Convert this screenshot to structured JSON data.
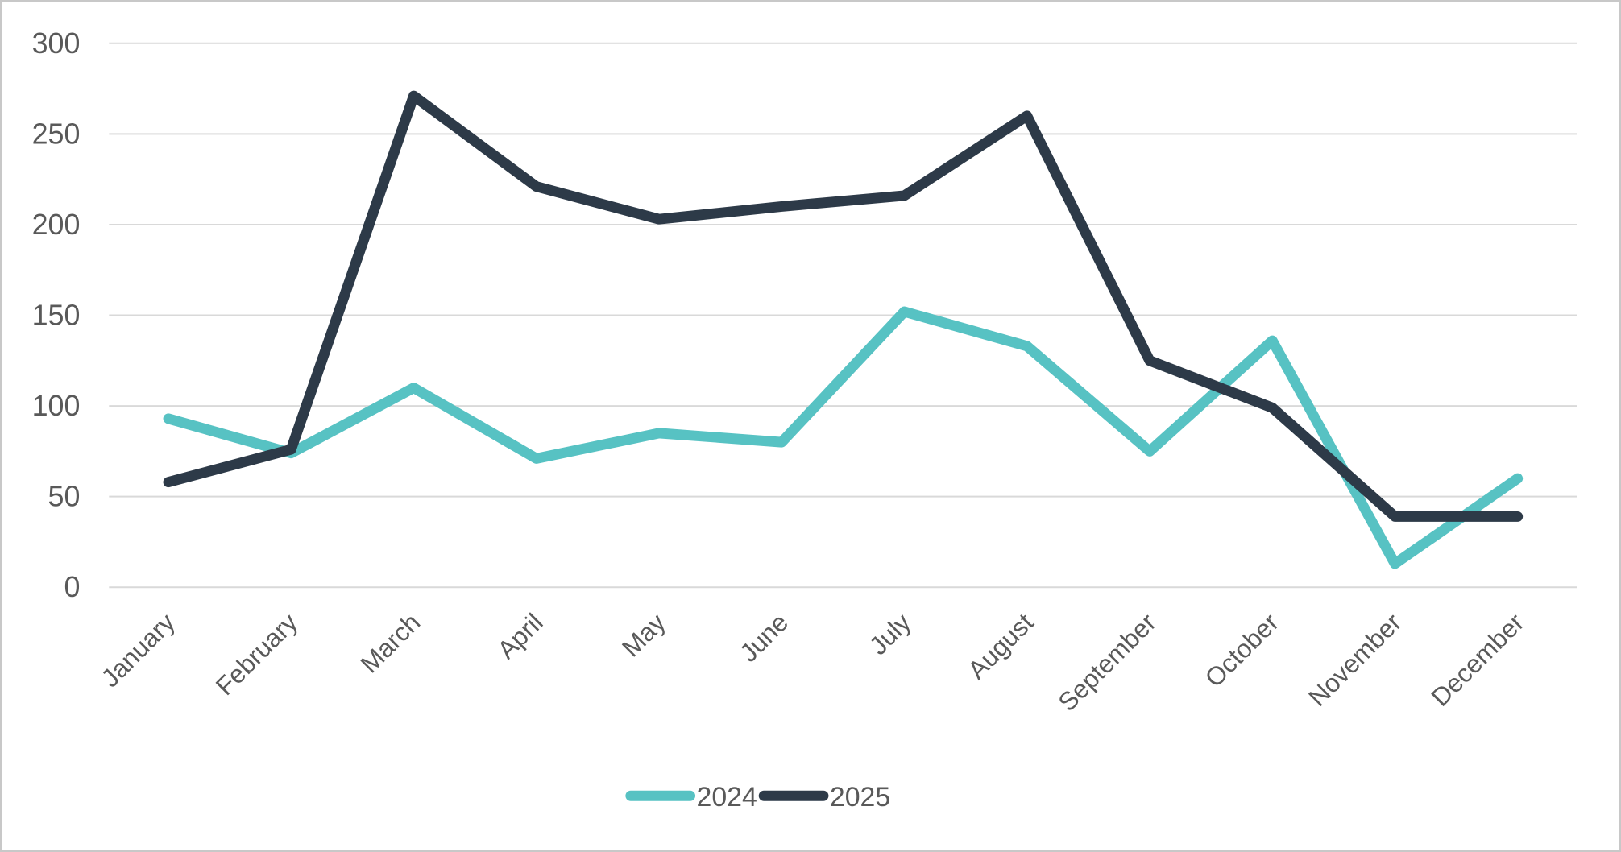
{
  "chart_data": {
    "type": "line",
    "title": "",
    "categories": [
      "January",
      "February",
      "March",
      "April",
      "May",
      "June",
      "July",
      "August",
      "September",
      "October",
      "November",
      "December"
    ],
    "series": [
      {
        "name": "2024",
        "color": "#57c2c3",
        "values": [
          93,
          74,
          110,
          71,
          85,
          80,
          152,
          133,
          75,
          136,
          13,
          60
        ]
      },
      {
        "name": "2025",
        "color": "#2d3a48",
        "values": [
          58,
          76,
          271,
          221,
          203,
          210,
          216,
          260,
          125,
          99,
          39,
          39
        ]
      }
    ],
    "yticks": [
      0,
      50,
      100,
      150,
      200,
      250,
      300
    ],
    "ylim": [
      0,
      300
    ],
    "ytick_step": 50,
    "grid": true,
    "legend_position": "bottom",
    "legend_labels": [
      "2024",
      "2025"
    ],
    "axis_text_color": "#595959",
    "gridline_color": "#d9d9d9",
    "background_color": "#ffffff",
    "border_color": "#c8c8c8"
  }
}
